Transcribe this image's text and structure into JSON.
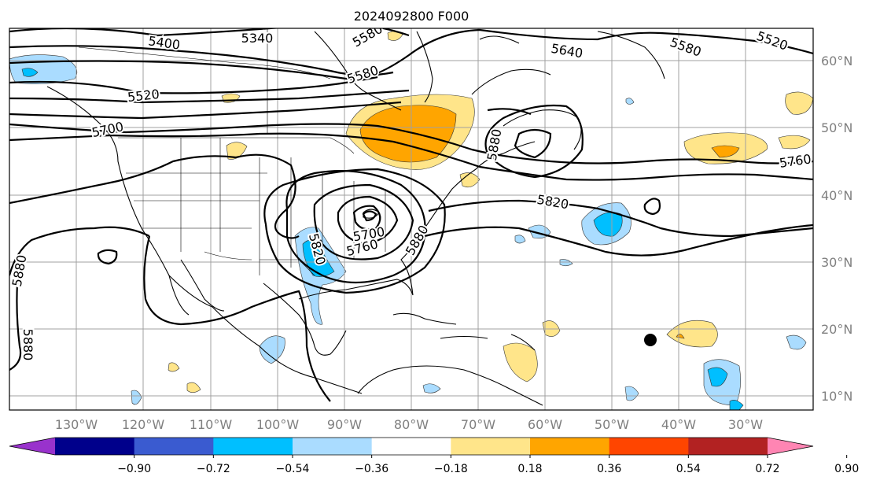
{
  "title": "2024092800 F000",
  "lon_labels": [
    "130°W",
    "120°W",
    "110°W",
    "100°W",
    "90°W",
    "80°W",
    "70°W",
    "60°W",
    "50°W",
    "40°W",
    "30°W"
  ],
  "lat_labels": [
    "60°N",
    "50°N",
    "40°N",
    "30°N",
    "20°N",
    "10°N"
  ],
  "contour_labels": [
    "5400",
    "5340",
    "5580",
    "5580",
    "5520",
    "5640",
    "5580",
    "5520",
    "5700",
    "5760",
    "5820",
    "5880",
    "5760",
    "5700",
    "5820",
    "5880",
    "5880",
    "5880"
  ],
  "colorbar": {
    "colors": [
      "#9932cc",
      "#00008b",
      "#3a5bd0",
      "#00bfff",
      "#aadcff",
      "#ffffff",
      "#ffe58a",
      "#ffa500",
      "#ff4500",
      "#b22222",
      "#ff85b3"
    ],
    "labels": [
      "−0.90",
      "−0.72",
      "−0.54",
      "−0.36",
      "−0.18",
      "0.18",
      "0.36",
      "0.54",
      "0.72",
      "0.90"
    ]
  }
}
